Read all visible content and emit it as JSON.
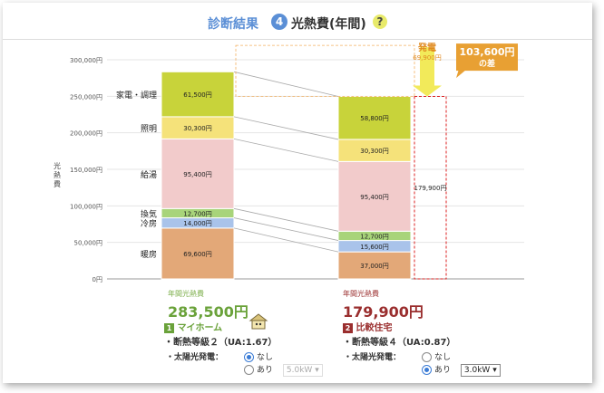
{
  "header": {
    "title": "診断結果",
    "step": "4",
    "subtitle": "光熱費(年間)",
    "help": "?"
  },
  "chart_data": {
    "type": "bar",
    "stacked": true,
    "ylabel": "光熱費",
    "ylim": [
      0,
      300000
    ],
    "yticks": [
      "0円",
      "50,000円",
      "100,000円",
      "150,000円",
      "200,000円",
      "250,000円",
      "300,000円"
    ],
    "categories": [
      "マイホーム",
      "比較住宅"
    ],
    "series": [
      {
        "name": "暖房",
        "color": "#e3a878",
        "values": [
          69600,
          37000
        ],
        "labels": [
          "69,600円",
          "37,000円"
        ]
      },
      {
        "name": "冷房",
        "color": "#a9c3ea",
        "values": [
          14000,
          15600
        ],
        "labels": [
          "14,000円",
          "15,600円"
        ]
      },
      {
        "name": "換気",
        "color": "#a8d47a",
        "values": [
          12700,
          12700
        ],
        "labels": [
          "12,700円",
          "12,700円"
        ]
      },
      {
        "name": "給湯",
        "color": "#f2cbcb",
        "values": [
          95400,
          95400
        ],
        "labels": [
          "95,400円",
          "95,400円"
        ]
      },
      {
        "name": "照明",
        "color": "#f5e27a",
        "values": [
          30300,
          30300
        ],
        "labels": [
          "30,300円",
          "30,300円"
        ]
      },
      {
        "name": "家電・調理",
        "color": "#c8d33a",
        "values": [
          61500,
          58800
        ],
        "labels": [
          "61,500円",
          "58,800円"
        ]
      }
    ],
    "series_labels": [
      "暖房",
      "冷房",
      "換気",
      "給湯",
      "照明",
      "家電・調理"
    ],
    "solar": {
      "title": "発電",
      "value": 69900,
      "label": "69,900円"
    },
    "net_label": "179,900円",
    "diff": {
      "amount": "103,600円",
      "suffix": "の差"
    }
  },
  "results": {
    "mine": {
      "caption": "年間光熱費",
      "total": "283,500円",
      "badge": "1",
      "name": "マイホーム",
      "grade": "・断熱等級２（UA:1.67）"
    },
    "compare": {
      "caption": "年間光熱費",
      "total": "179,900円",
      "badge": "2",
      "name": "比較住宅",
      "grade": "・断熱等級４（UA:0.87）"
    }
  },
  "solar_controls": {
    "mine": {
      "label": "・太陽光発電：",
      "opt_none": "なし",
      "opt_yes": "あり",
      "selected": "none",
      "capacity": "5.0kW"
    },
    "compare": {
      "label": "・太陽光発電：",
      "opt_none": "なし",
      "opt_yes": "あり",
      "selected": "yes",
      "capacity": "3.0kW"
    }
  }
}
